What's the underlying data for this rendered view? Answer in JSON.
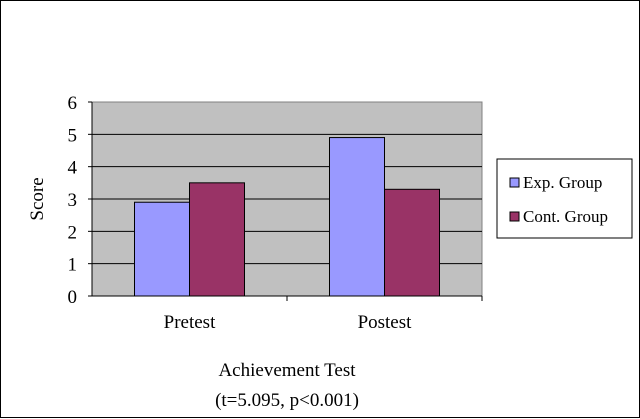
{
  "chart_data": {
    "type": "bar",
    "title": "",
    "xlabel": [
      "Achievement Test",
      "(t=5.095, p<0.001)"
    ],
    "ylabel": "Score",
    "categories": [
      "Pretest",
      "Postest"
    ],
    "series": [
      {
        "name": "Exp. Group",
        "values": [
          2.9,
          4.9
        ],
        "color": "#9999ff"
      },
      {
        "name": "Cont. Group",
        "values": [
          3.5,
          3.3
        ],
        "color": "#993366"
      }
    ],
    "ylim": [
      0,
      6
    ],
    "yticks": [
      "0",
      "1",
      "2",
      "3",
      "4",
      "5",
      "6"
    ],
    "grid": true,
    "plot_background": "#c0c0c0",
    "legend_position": "right"
  }
}
